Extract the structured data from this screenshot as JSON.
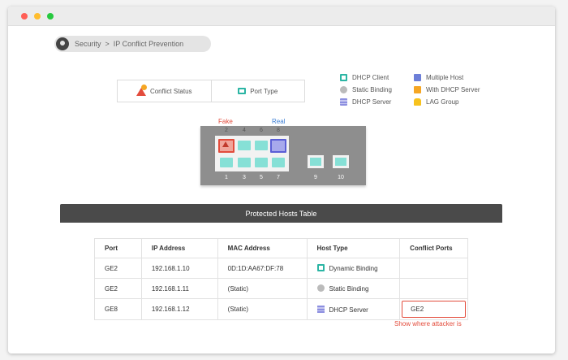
{
  "breadcrumb": {
    "section": "Security",
    "separator": ">",
    "page": "IP Conflict Prevention"
  },
  "legend_box": {
    "conflict_status": "Conflict Status",
    "port_type": "Port Type"
  },
  "host_key": {
    "left": [
      {
        "label": "DHCP Client",
        "icon": "dhcp-client-icon"
      },
      {
        "label": "Static Binding",
        "icon": "static-binding-icon"
      },
      {
        "label": "DHCP Server",
        "icon": "dhcp-server-icon"
      }
    ],
    "right": [
      {
        "label": "Multiple Host",
        "icon": "multiple-host-icon"
      },
      {
        "label": "With DHCP Server",
        "icon": "with-dhcp-server-icon"
      },
      {
        "label": "LAG Group",
        "icon": "lag-group-icon"
      }
    ]
  },
  "switch": {
    "fake_label": "Fake",
    "real_label": "Real",
    "top_ports": [
      "2",
      "4",
      "6",
      "8"
    ],
    "bottom_ports": [
      "1",
      "3",
      "5",
      "7"
    ],
    "sfp_ports": [
      "9",
      "10"
    ]
  },
  "table": {
    "title": "Protected Hosts Table",
    "headers": [
      "Port",
      "IP Address",
      "MAC Address",
      "Host Type",
      "Conflict Ports"
    ],
    "rows": [
      {
        "port": "GE2",
        "ip": "192.168.1.10",
        "mac": "0D:1D:AA67:DF:78",
        "host_type": "Dynamic Binding",
        "conflict": ""
      },
      {
        "port": "GE2",
        "ip": "192.168.1.11",
        "mac": "(Static)",
        "host_type": "Static Binding",
        "conflict": ""
      },
      {
        "port": "GE8",
        "ip": "192.168.1.12",
        "mac": "(Static)",
        "host_type": "DHCP Server",
        "conflict": "GE2"
      }
    ]
  },
  "note": "Show where attacker is",
  "colors": {
    "accent_red": "#e34c3c",
    "teal": "#2bb5a4",
    "real_blue": "#3f80d6",
    "header_dark": "#4a4a4a"
  }
}
